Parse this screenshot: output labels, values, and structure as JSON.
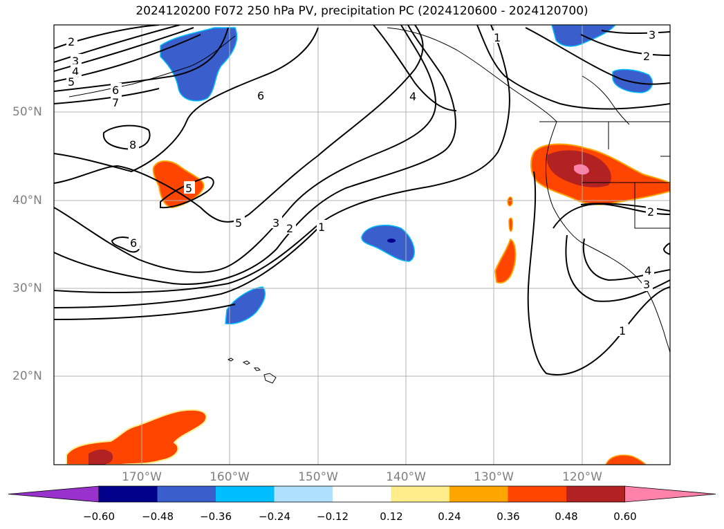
{
  "title": "2024120200 F072 250 hPa PV, precipitation PC (2024120600 - 2024120700)",
  "lat_labels": [
    "50°N",
    "40°N",
    "30°N",
    "20°N"
  ],
  "lon_labels": [
    "170°W",
    "160°W",
    "150°W",
    "140°W",
    "130°W",
    "120°W"
  ],
  "colorbar": {
    "tick_labels": [
      "−0.60",
      "−0.48",
      "−0.36",
      "−0.24",
      "−0.12",
      "0.12",
      "0.24",
      "0.36",
      "0.48",
      "0.60"
    ],
    "colors": [
      "#9932cc",
      "#00008b",
      "#3a5fcd",
      "#00bfff",
      "#b0e2ff",
      "#ffffff",
      "#ffec8b",
      "#ffa500",
      "#ff4500",
      "#b22222",
      "#ff82ab"
    ]
  },
  "contour_labels": [
    "2",
    "3",
    "4",
    "5",
    "6",
    "7",
    "8",
    "6",
    "5",
    "6",
    "5",
    "3",
    "2",
    "1",
    "4",
    "1",
    "3",
    "2",
    "2",
    "4",
    "3",
    "1"
  ]
}
